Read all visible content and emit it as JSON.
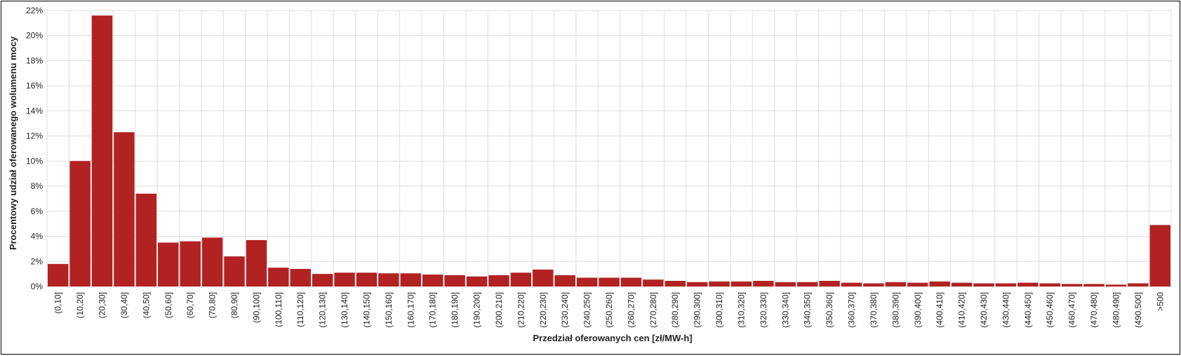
{
  "chart_data": {
    "type": "bar",
    "title": "",
    "xlabel": "Przedział oferowanych cen [zł/MW-h]",
    "ylabel": "Procentowy udział oferowanego wolumenu mocy",
    "ylim": [
      0,
      22
    ],
    "y_ticks": [
      "0%",
      "2%",
      "4%",
      "6%",
      "8%",
      "10%",
      "12%",
      "14%",
      "16%",
      "18%",
      "20%",
      "22%"
    ],
    "grid": true,
    "bar_color": "#b22222",
    "categories": [
      "(0,10]",
      "(10,20]",
      "(20,30]",
      "(30,40]",
      "(40,50]",
      "(50,60]",
      "(60,70]",
      "(70,80]",
      "(80,90]",
      "(90,100]",
      "(100,110]",
      "(110,120]",
      "(120,130]",
      "(130,140]",
      "(140,150]",
      "(150,160]",
      "(160,170]",
      "(170,180]",
      "(180,190]",
      "(190,200]",
      "(200,210]",
      "(210,220]",
      "(220,230]",
      "(230,240]",
      "(240,250]",
      "(250,260]",
      "(260,270]",
      "(270,280]",
      "(280,290]",
      "(290,300]",
      "(300,310]",
      "(310,320]",
      "(320,330]",
      "(330,340]",
      "(340,350]",
      "(350,360]",
      "(360,370]",
      "(370,380]",
      "(380,390]",
      "(390,400]",
      "(400,410]",
      "(410,420]",
      "(420,430]",
      "(430,440]",
      "(440,450]",
      "(450,460]",
      "(460,470]",
      "(470,480]",
      "(480,490]",
      "(490,500]",
      ">500"
    ],
    "values": [
      1.8,
      10.0,
      21.6,
      12.3,
      7.4,
      3.5,
      3.6,
      3.9,
      2.4,
      3.7,
      1.5,
      1.4,
      1.0,
      1.1,
      1.1,
      1.05,
      1.05,
      0.95,
      0.9,
      0.8,
      0.9,
      1.1,
      1.35,
      0.9,
      0.7,
      0.7,
      0.7,
      0.55,
      0.45,
      0.35,
      0.4,
      0.4,
      0.45,
      0.35,
      0.35,
      0.45,
      0.3,
      0.25,
      0.35,
      0.3,
      0.4,
      0.3,
      0.25,
      0.25,
      0.3,
      0.25,
      0.2,
      0.2,
      0.15,
      0.25,
      4.9
    ]
  }
}
